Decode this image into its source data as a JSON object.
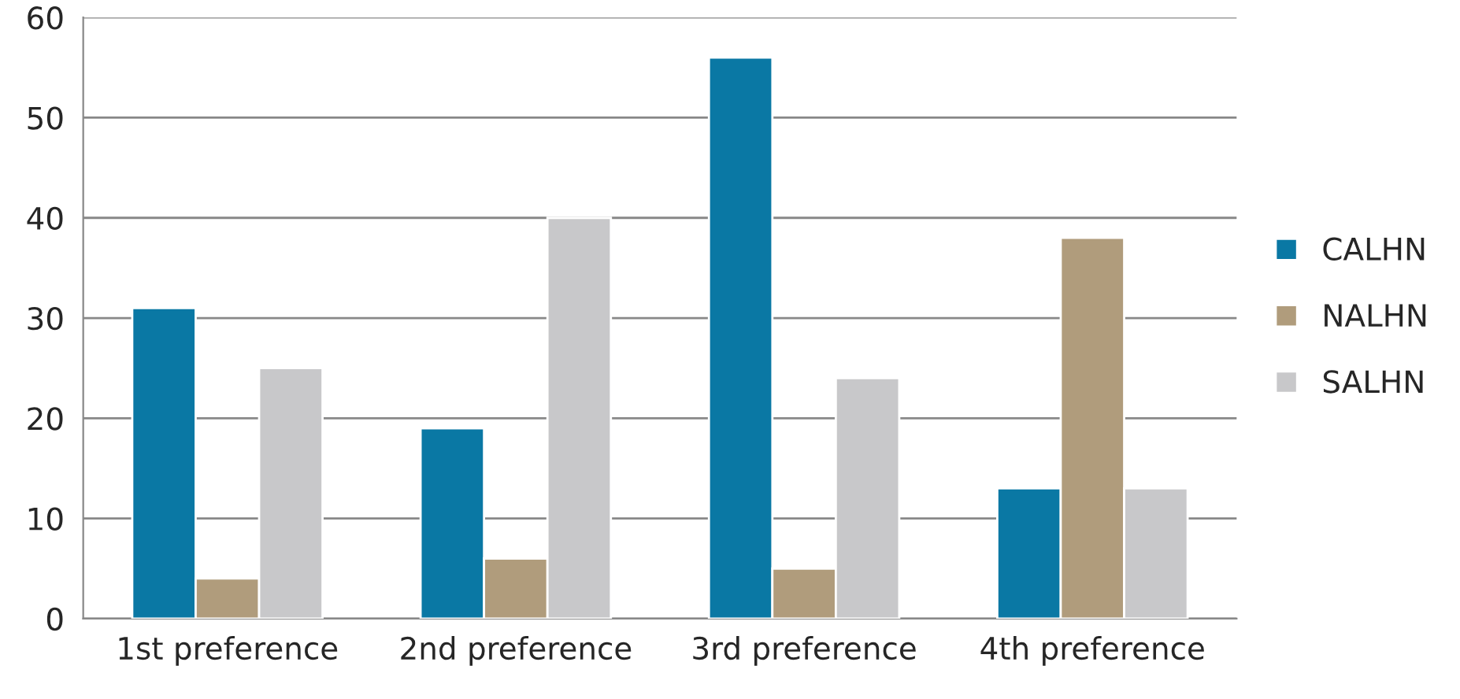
{
  "chart_data": {
    "type": "bar",
    "categories": [
      "1st preference",
      "2nd preference",
      "3rd preference",
      "4th preference"
    ],
    "series": [
      {
        "name": "CALHN",
        "color": "#0a78a4",
        "values": [
          31,
          19,
          56,
          13
        ]
      },
      {
        "name": "NALHN",
        "color": "#b09c7c",
        "values": [
          4,
          6,
          5,
          38
        ]
      },
      {
        "name": "SALHN",
        "color": "#c8c8ca",
        "values": [
          25,
          40,
          24,
          13
        ]
      }
    ],
    "ylim": [
      0,
      60
    ],
    "yticks": [
      0,
      10,
      20,
      30,
      40,
      50,
      60
    ],
    "grid": "y",
    "legend": "right"
  }
}
